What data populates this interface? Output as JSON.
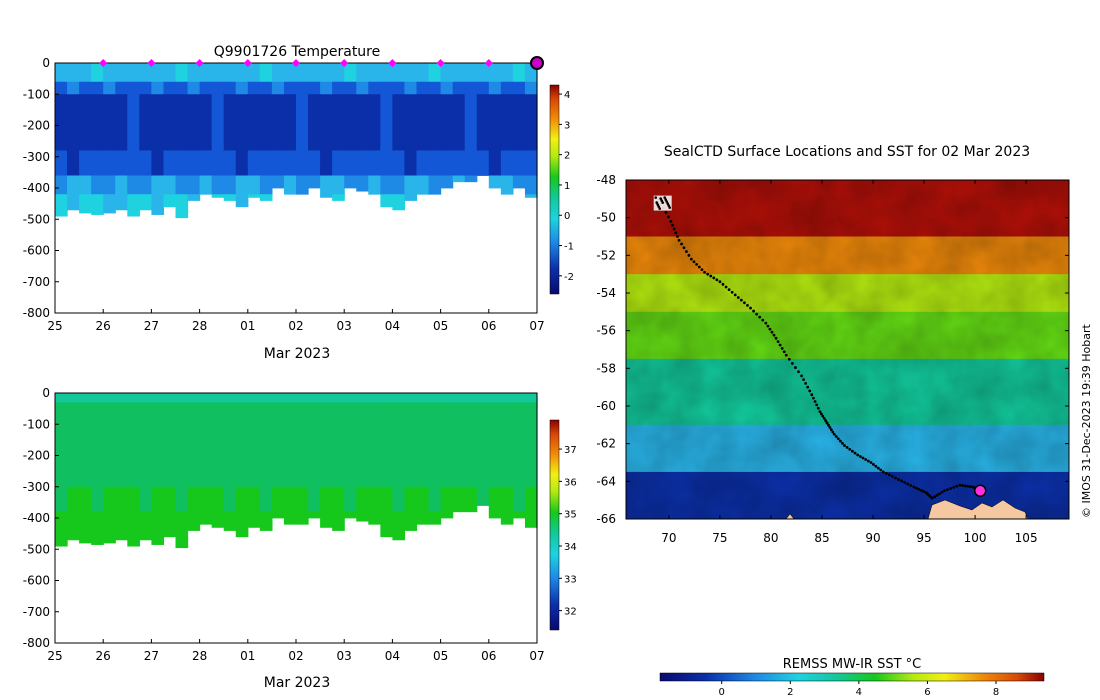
{
  "colors": {
    "jet": [
      "#0a0a6e",
      "#0b2fa8",
      "#1357d6",
      "#1e8ae6",
      "#29b5ea",
      "#1fd2e0",
      "#12c89b",
      "#10c060",
      "#16c81c",
      "#64dc14",
      "#b4ea10",
      "#f0f014",
      "#f8c80c",
      "#f08a0a",
      "#d84a08",
      "#b01008",
      "#8a0000"
    ],
    "marker_magenta": "#ff00ff",
    "land": "#f6c8a2",
    "track": "#000000",
    "axis": "#000000"
  },
  "chart_data": [
    {
      "id": "temperature-section",
      "type": "heatmap",
      "title": "Q9901726  Temperature",
      "xlabel": "Mar 2023",
      "ylabel": "",
      "xticks": [
        "25",
        "26",
        "27",
        "28",
        "01",
        "02",
        "03",
        "04",
        "05",
        "06",
        "07"
      ],
      "yticks": [
        0,
        -100,
        -200,
        -300,
        -400,
        -500,
        -600,
        -700,
        -800
      ],
      "xlim": [
        0,
        10
      ],
      "ylim": [
        -800,
        0
      ],
      "grid": false,
      "profile_days": [
        0.0,
        0.25,
        0.5,
        0.75,
        1.0,
        1.25,
        1.5,
        1.75,
        2.0,
        2.25,
        2.5,
        2.75,
        3.0,
        3.25,
        3.5,
        3.75,
        4.0,
        4.25,
        4.5,
        4.75,
        5.0,
        5.25,
        5.5,
        5.75,
        6.0,
        6.25,
        6.5,
        6.75,
        7.0,
        7.25,
        7.5,
        7.75,
        8.0,
        8.25,
        8.5,
        8.75,
        9.0,
        9.25,
        9.5,
        9.75
      ],
      "max_depth_m": [
        -490,
        -470,
        -480,
        -485,
        -480,
        -470,
        -490,
        -470,
        -485,
        -460,
        -495,
        -440,
        -420,
        -430,
        -440,
        -460,
        -430,
        -440,
        -400,
        -420,
        -420,
        -400,
        -430,
        -440,
        -400,
        -410,
        -420,
        -460,
        -470,
        -440,
        -420,
        -420,
        -400,
        -380,
        -380,
        -360,
        -400,
        -420,
        -400,
        -430
      ],
      "temperature_layers": [
        {
          "top_m": 0,
          "bottom_m": -60,
          "temp_c": -0.8
        },
        {
          "top_m": -60,
          "bottom_m": -100,
          "temp_c": -1.6
        },
        {
          "top_m": -100,
          "bottom_m": -280,
          "temp_c": -2.1
        },
        {
          "top_m": -280,
          "bottom_m": -360,
          "temp_c": -1.8
        },
        {
          "top_m": -360,
          "bottom_m": -420,
          "temp_c": -1.1
        },
        {
          "top_m": -420,
          "bottom_m": -800,
          "temp_c": -0.6
        }
      ],
      "colorbar": {
        "min": -2.6,
        "max": 4.3,
        "ticks": [
          -2,
          -1,
          0,
          1,
          2,
          3,
          4
        ]
      },
      "surfacing_markers": {
        "days": [
          1,
          2,
          3,
          4,
          5,
          6,
          7,
          8,
          9
        ],
        "label": "magenta diamonds at surface"
      },
      "latest_marker": {
        "day": 10,
        "label": "current position circle"
      }
    },
    {
      "id": "salinity-section",
      "type": "heatmap",
      "title": "",
      "xlabel": "Mar 2023",
      "ylabel": "",
      "xticks": [
        "25",
        "26",
        "27",
        "28",
        "01",
        "02",
        "03",
        "04",
        "05",
        "06",
        "07"
      ],
      "yticks": [
        0,
        -100,
        -200,
        -300,
        -400,
        -500,
        -600,
        -700,
        -800
      ],
      "xlim": [
        0,
        10
      ],
      "ylim": [
        -800,
        0
      ],
      "grid": false,
      "profile_days": [
        0.0,
        0.25,
        0.5,
        0.75,
        1.0,
        1.25,
        1.5,
        1.75,
        2.0,
        2.25,
        2.5,
        2.75,
        3.0,
        3.25,
        3.5,
        3.75,
        4.0,
        4.25,
        4.5,
        4.75,
        5.0,
        5.25,
        5.5,
        5.75,
        6.0,
        6.25,
        6.5,
        6.75,
        7.0,
        7.25,
        7.5,
        7.75,
        8.0,
        8.25,
        8.5,
        8.75,
        9.0,
        9.25,
        9.5,
        9.75
      ],
      "max_depth_m": [
        -490,
        -470,
        -480,
        -485,
        -480,
        -470,
        -490,
        -470,
        -485,
        -460,
        -495,
        -440,
        -420,
        -430,
        -440,
        -460,
        -430,
        -440,
        -400,
        -420,
        -420,
        -400,
        -430,
        -440,
        -400,
        -410,
        -420,
        -460,
        -470,
        -440,
        -420,
        -420,
        -400,
        -380,
        -380,
        -360,
        -400,
        -420,
        -400,
        -430
      ],
      "salinity_layers": [
        {
          "top_m": 0,
          "bottom_m": -30,
          "sal": 33.9
        },
        {
          "top_m": -30,
          "bottom_m": -300,
          "sal": 34.3
        },
        {
          "top_m": -300,
          "bottom_m": -380,
          "sal": 34.5
        },
        {
          "top_m": -380,
          "bottom_m": -800,
          "sal": 34.7
        }
      ],
      "colorbar": {
        "min": 31.4,
        "max": 37.9,
        "ticks": [
          32,
          33,
          34,
          35,
          36,
          37
        ]
      }
    },
    {
      "id": "sst-map",
      "type": "heatmap",
      "title": "SealCTD Surface Locations and SST for 02 Mar 2023",
      "xlabel": "",
      "ylabel": "",
      "xticks": [
        70,
        75,
        80,
        85,
        90,
        95,
        100,
        105
      ],
      "yticks": [
        -48,
        -50,
        -52,
        -54,
        -56,
        -58,
        -60,
        -62,
        -64,
        -66
      ],
      "xlim": [
        65.8,
        109.2
      ],
      "ylim": [
        -66,
        -48
      ],
      "grid": false,
      "sst_bands": [
        {
          "lat_from": -48,
          "lat_to": -51,
          "sst_c": 8.5
        },
        {
          "lat_from": -51,
          "lat_to": -53,
          "sst_c": 7.0
        },
        {
          "lat_from": -53,
          "lat_to": -55,
          "sst_c": 5.5
        },
        {
          "lat_from": -55,
          "lat_to": -57.5,
          "sst_c": 4.2
        },
        {
          "lat_from": -57.5,
          "lat_to": -61,
          "sst_c": 2.6
        },
        {
          "lat_from": -61,
          "lat_to": -63.5,
          "sst_c": 1.2
        },
        {
          "lat_from": -63.5,
          "lat_to": -66,
          "sst_c": -0.8
        }
      ],
      "track": {
        "lon": [
          69.0,
          70.2,
          71.0,
          72.2,
          73.5,
          75.0,
          76.5,
          78.0,
          79.5,
          80.5,
          81.5,
          83.0,
          84.0,
          84.8,
          85.5,
          86.2,
          87.2,
          88.5,
          89.8,
          91.0,
          92.5,
          94.0,
          95.2,
          95.8,
          97.0,
          98.5,
          99.8,
          100.5
        ],
        "lat": [
          -49.0,
          -50.2,
          -51.2,
          -52.2,
          -52.9,
          -53.4,
          -54.1,
          -54.8,
          -55.6,
          -56.4,
          -57.3,
          -58.4,
          -59.4,
          -60.3,
          -60.9,
          -61.5,
          -62.1,
          -62.6,
          -63.0,
          -63.5,
          -63.9,
          -64.3,
          -64.6,
          -64.9,
          -64.5,
          -64.2,
          -64.3,
          -64.5
        ]
      },
      "current_position": {
        "lon": 100.5,
        "lat": -64.5
      },
      "release_site": {
        "lon": 69.2,
        "lat": -49.2
      },
      "colorbar": {
        "label": "REMSS MW-IR SST °C",
        "min": -1.8,
        "max": 9.4,
        "ticks": [
          0,
          2,
          4,
          6,
          8
        ]
      }
    }
  ],
  "credit": "© IMOS 31-Dec-2023 19:39 Hobart"
}
